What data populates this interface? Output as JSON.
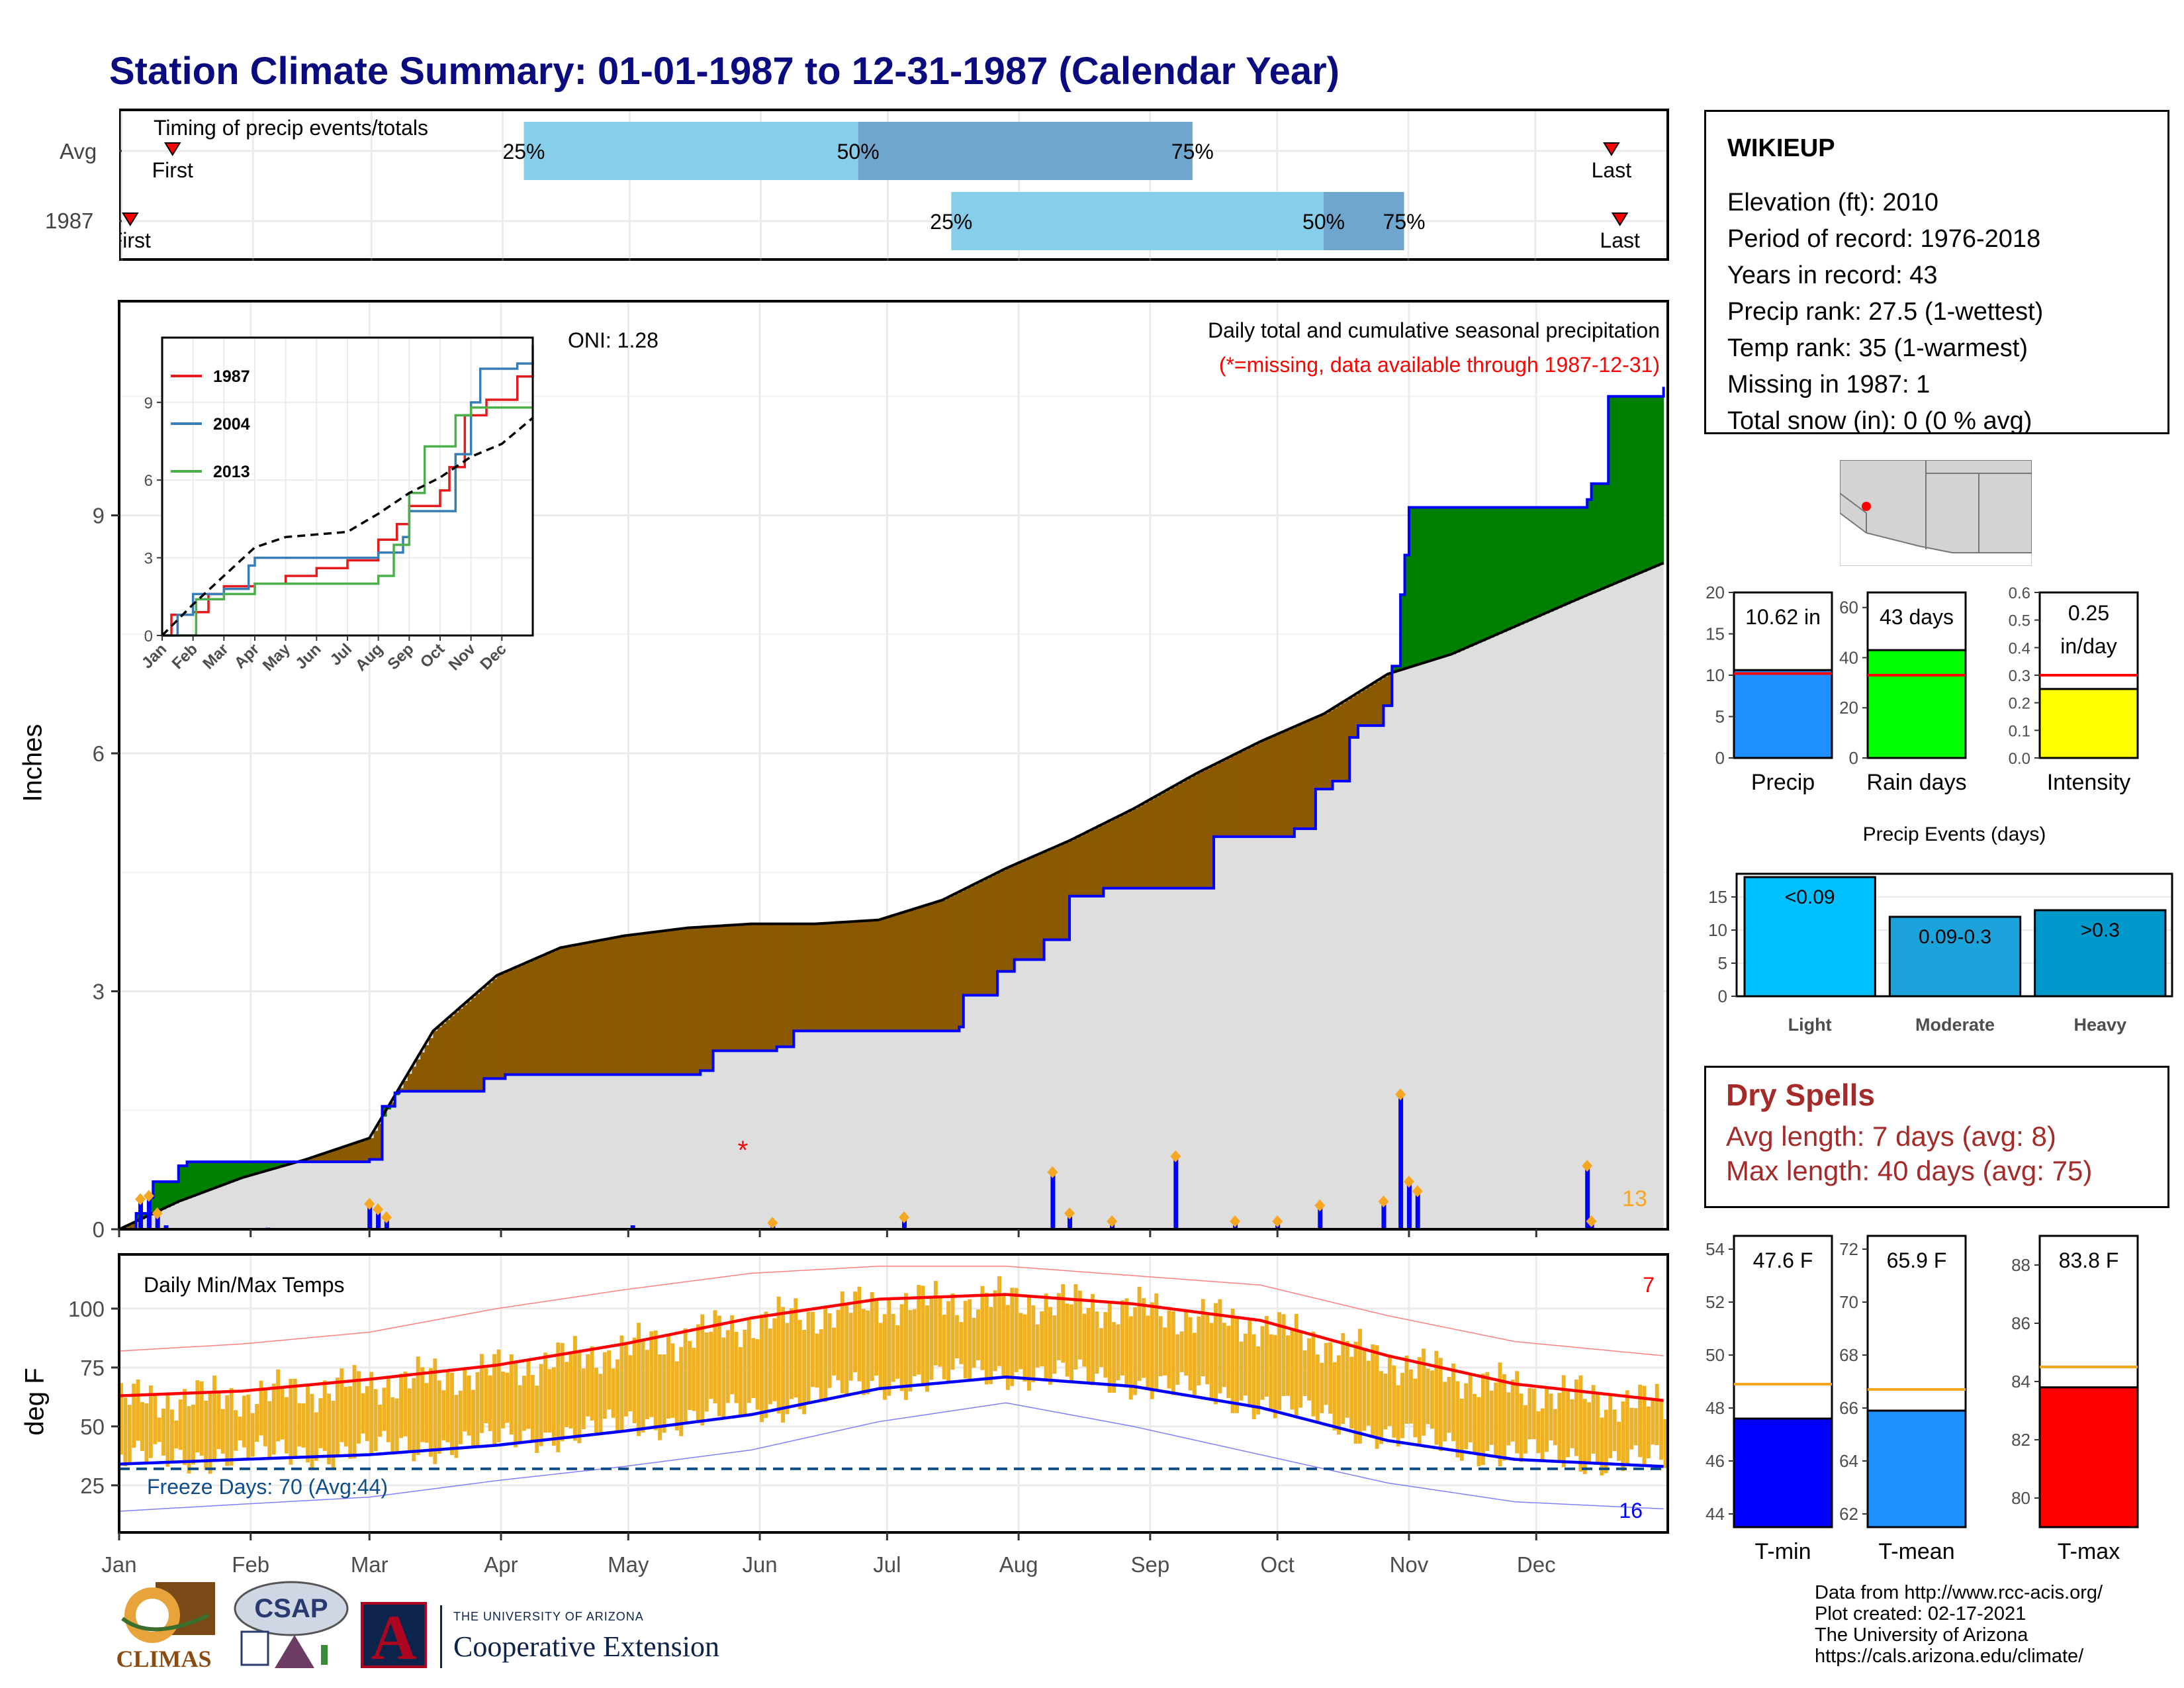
{
  "title": "Station Climate Summary: 01-01-1987 to 12-31-1987 (Calendar Year)",
  "colors": {
    "title": "#0b0b80",
    "precip_fill": "#1e90ff",
    "rain_fill": "#00ff00",
    "intensity_fill": "#ffff00",
    "tmin": "#0000ff",
    "tmean": "#1e90ff",
    "tmax": "#ff0000",
    "surplus": "#008000",
    "deficit": "#8b5a00",
    "dry": "#a52a2a",
    "temp_bar": "#eeb123"
  },
  "timing": {
    "label": "Timing of precip events/totals",
    "rows": [
      {
        "name": "Avg",
        "first": "First",
        "last": "Last",
        "p25_doy": 96,
        "p50_doy": 175,
        "p75_doy": 254,
        "first_doy": 13,
        "last_doy": 353
      },
      {
        "name": "1987",
        "first": "First",
        "last": "Last",
        "p25_doy": 197,
        "p50_doy": 285,
        "p75_doy": 304,
        "first_doy": 3,
        "last_doy": 355
      }
    ],
    "pct_labels": [
      "25%",
      "50%",
      "75%"
    ]
  },
  "station": {
    "name": "WIKIEUP",
    "lines": [
      "Elevation (ft): 2010",
      "Period of record: 1976-2018",
      "Years in record: 43",
      "Precip rank: 27.5 (1-wettest)",
      "Temp rank: 35 (1-warmest)",
      "Missing in 1987: 1",
      "Total snow (in): 0 (0 % avg)"
    ]
  },
  "precip_panel": {
    "ylabel": "Inches",
    "oni": "ONI: 1.28",
    "subtitle": "Daily total and cumulative seasonal precipitation",
    "missing_note": "(*=missing, data available through 1987-12-31)",
    "yticks": [
      "0",
      "3",
      "6",
      "9"
    ],
    "corner_count": "13"
  },
  "inset": {
    "legend": [
      "1987",
      "2004",
      "2013"
    ],
    "yticks": [
      "0",
      "3",
      "6",
      "9"
    ],
    "months": [
      "Jan",
      "Feb",
      "Mar",
      "Apr",
      "May",
      "Jun",
      "Jul",
      "Aug",
      "Sep",
      "Oct",
      "Nov",
      "Dec"
    ]
  },
  "temp_panel": {
    "title": "Daily Min/Max Temps",
    "ylabel": "deg F",
    "yticks": [
      "25",
      "50",
      "75",
      "100"
    ],
    "freeze": "Freeze Days: 70 (Avg:44)",
    "hot_count": "7",
    "cold_count": "16"
  },
  "months": [
    "Jan",
    "Feb",
    "Mar",
    "Apr",
    "May",
    "Jun",
    "Jul",
    "Aug",
    "Sep",
    "Oct",
    "Nov",
    "Dec"
  ],
  "precip_bars": {
    "labels": [
      "Precip",
      "Rain days",
      "Intensity"
    ],
    "values": [
      "10.62 in",
      "43 days",
      "0.25"
    ],
    "intensity_unit": "in/day",
    "p_ticks": [
      "0",
      "5",
      "10",
      "15",
      "20"
    ],
    "r_ticks": [
      "0",
      "20",
      "40",
      "60"
    ],
    "i_ticks": [
      "0.0",
      "0.1",
      "0.2",
      "0.3",
      "0.4",
      "0.5",
      "0.6"
    ]
  },
  "events": {
    "title": "Precip Events (days)",
    "categories": [
      "Light",
      "Moderate",
      "Heavy"
    ],
    "labels": [
      "<0.09",
      "0.09-0.3",
      ">0.3"
    ],
    "yticks": [
      "0",
      "5",
      "10",
      "15"
    ]
  },
  "dry": {
    "title": "Dry Spells",
    "avg": "Avg length: 7 days (avg: 8)",
    "max": "Max length: 40 days (avg: 75)"
  },
  "temp_bars": {
    "labels": [
      "T-min",
      "T-mean",
      "T-max"
    ],
    "values": [
      "47.6 F",
      "65.9 F",
      "83.8 F"
    ],
    "min_ticks": [
      "44",
      "46",
      "48",
      "50",
      "52",
      "54"
    ],
    "mean_ticks": [
      "62",
      "64",
      "66",
      "68",
      "70",
      "72"
    ],
    "max_ticks": [
      "80",
      "82",
      "84",
      "86",
      "88"
    ]
  },
  "footer": [
    "Data from http://www.rcc-acis.org/",
    "Plot created: 02-17-2021",
    "The University of Arizona",
    "https://cals.arizona.edu/climate/"
  ],
  "logos": {
    "climas": "CLIMAS",
    "csap": "CSAP",
    "ua_small": "THE UNIVERSITY OF ARIZONA",
    "coop": "Cooperative Extension",
    "ua_letter": "A"
  },
  "chart_data": [
    {
      "type": "line",
      "title": "Daily total and cumulative seasonal precipitation",
      "ylabel": "Inches",
      "ylim": [
        0,
        11.7
      ],
      "series": [
        {
          "name": "1987",
          "x_doy": [
            1,
            5,
            8,
            9,
            15,
            17,
            30,
            45,
            60,
            61,
            63,
            66,
            67,
            87,
            92,
            138,
            141,
            156,
            160,
            199,
            200,
            208,
            212,
            219,
            225,
            233,
            259,
            278,
            283,
            287,
            291,
            293,
            299,
            301,
            303,
            304,
            305,
            347,
            348,
            352,
            365
          ],
          "y": [
            0.0,
            0.2,
            0.4,
            0.6,
            0.8,
            0.85,
            0.85,
            0.85,
            0.88,
            0.88,
            1.55,
            1.72,
            1.74,
            1.9,
            1.95,
            2.0,
            2.25,
            2.3,
            2.5,
            2.55,
            2.95,
            3.25,
            3.4,
            3.65,
            4.2,
            4.3,
            4.95,
            5.05,
            5.55,
            5.65,
            6.2,
            6.35,
            6.6,
            7.1,
            8.0,
            8.5,
            9.1,
            9.2,
            9.4,
            10.5,
            10.62
          ]
        },
        {
          "name": "average",
          "x_doy": [
            1,
            15,
            30,
            45,
            60,
            75,
            90,
            105,
            120,
            135,
            150,
            165,
            180,
            195,
            210,
            225,
            240,
            255,
            270,
            285,
            300,
            315,
            330,
            345,
            365
          ],
          "y": [
            0.0,
            0.35,
            0.65,
            0.88,
            1.15,
            2.5,
            3.2,
            3.55,
            3.7,
            3.8,
            3.85,
            3.85,
            3.9,
            4.15,
            4.55,
            4.9,
            5.3,
            5.75,
            6.15,
            6.5,
            7.0,
            7.25,
            7.6,
            7.95,
            8.4
          ]
        }
      ],
      "daily_doy": [
        6,
        8,
        10,
        12,
        36,
        60,
        62,
        64,
        122,
        155,
        186,
        221,
        225,
        235,
        250,
        264,
        274,
        284,
        299,
        303,
        305,
        307,
        347,
        348
      ],
      "daily_in": [
        0.38,
        0.42,
        0.2,
        0.05,
        0.02,
        0.32,
        0.25,
        0.15,
        0.05,
        0.08,
        0.15,
        0.72,
        0.2,
        0.1,
        0.92,
        0.1,
        0.1,
        0.3,
        0.35,
        1.7,
        0.6,
        0.48,
        0.8,
        0.1
      ],
      "missing_doy": [
        148
      ]
    },
    {
      "type": "line",
      "title": "Inset cumulative precipitation comparison",
      "ylim": [
        0,
        11.5
      ],
      "series": [
        {
          "name": "1987",
          "x_month": [
            0,
            0.3,
            1.0,
            1.5,
            2.0,
            3.0,
            4.0,
            5.0,
            6.0,
            7.0,
            7.6,
            8.0,
            9.0,
            9.3,
            9.8,
            10.5,
            11.0,
            11.5,
            12.0
          ],
          "y": [
            0,
            0.8,
            0.9,
            1.6,
            1.9,
            2.0,
            2.3,
            2.6,
            2.9,
            3.7,
            4.3,
            5.0,
            5.6,
            6.5,
            8.5,
            9.1,
            9.1,
            10.0,
            10.6
          ]
        },
        {
          "name": "2004",
          "x_month": [
            0,
            0.5,
            1.0,
            2.0,
            2.8,
            3.0,
            4.0,
            5.0,
            6.0,
            7.0,
            7.8,
            8.0,
            9.0,
            9.5,
            10.0,
            10.3,
            11.0,
            11.5,
            12.0
          ],
          "y": [
            0,
            0.8,
            1.6,
            1.8,
            2.7,
            3.0,
            3.0,
            3.0,
            3.0,
            3.2,
            3.8,
            4.8,
            4.8,
            7.0,
            9.0,
            10.3,
            10.3,
            10.5,
            11.2
          ]
        },
        {
          "name": "2013",
          "x_month": [
            0,
            1.0,
            1.1,
            2.0,
            3.0,
            4.0,
            5.0,
            6.0,
            7.0,
            7.5,
            8.0,
            8.5,
            9.0,
            9.5,
            10.0,
            11.0,
            12.0
          ],
          "y": [
            0,
            0,
            1.4,
            1.6,
            2.0,
            2.0,
            2.0,
            2.0,
            2.3,
            3.5,
            5.5,
            7.3,
            7.3,
            8.5,
            8.8,
            8.8,
            8.8
          ]
        },
        {
          "name": "average",
          "x_month": [
            0,
            1,
            2,
            3,
            4,
            5,
            6,
            7,
            8,
            9,
            10,
            11,
            12
          ],
          "y": [
            0,
            1.2,
            2.3,
            3.4,
            3.8,
            3.9,
            4.0,
            4.7,
            5.5,
            6.1,
            6.9,
            7.4,
            8.4
          ]
        }
      ]
    },
    {
      "type": "line",
      "title": "Daily Min/Max Temps",
      "ylabel": "deg F",
      "ylim": [
        5,
        123
      ],
      "freeze_line": 32,
      "series": [
        {
          "name": "avg max",
          "x_doy": [
            1,
            30,
            60,
            90,
            120,
            150,
            180,
            210,
            240,
            270,
            300,
            330,
            365
          ],
          "y": [
            63,
            65,
            70,
            76,
            85,
            96,
            104,
            106,
            102,
            95,
            80,
            68,
            61
          ]
        },
        {
          "name": "avg min",
          "x_doy": [
            1,
            30,
            60,
            90,
            120,
            150,
            180,
            210,
            240,
            270,
            300,
            330,
            365
          ],
          "y": [
            34,
            36,
            38,
            42,
            48,
            55,
            66,
            71,
            67,
            58,
            44,
            36,
            33
          ]
        },
        {
          "name": "record max",
          "x_doy": [
            1,
            30,
            60,
            90,
            120,
            150,
            180,
            210,
            240,
            270,
            300,
            330,
            365
          ],
          "y": [
            82,
            85,
            90,
            100,
            108,
            115,
            118,
            118,
            114,
            110,
            97,
            86,
            80
          ]
        },
        {
          "name": "record min",
          "x_doy": [
            1,
            30,
            60,
            90,
            120,
            150,
            180,
            210,
            240,
            270,
            300,
            330,
            365
          ],
          "y": [
            14,
            17,
            20,
            27,
            33,
            40,
            52,
            60,
            50,
            38,
            26,
            18,
            15
          ]
        }
      ]
    },
    {
      "type": "bar",
      "title": "Precip Events (days)",
      "categories": [
        "Light",
        "Moderate",
        "Heavy"
      ],
      "values": [
        18,
        12,
        13
      ],
      "ylim": [
        0,
        18.5
      ]
    },
    {
      "type": "bar",
      "categories": [
        "Precip",
        "Rain days",
        "Intensity"
      ],
      "values": [
        10.62,
        43,
        0.25
      ],
      "averages": [
        10.2,
        33,
        0.3
      ],
      "ylims": [
        [
          0,
          20
        ],
        [
          0,
          60
        ],
        [
          0,
          0.6
        ]
      ]
    },
    {
      "type": "bar",
      "categories": [
        "T-min",
        "T-mean",
        "T-max"
      ],
      "values": [
        47.6,
        65.9,
        83.8
      ],
      "averages": [
        48.9,
        66.7,
        84.5
      ],
      "ylims": [
        [
          43.5,
          54.5
        ],
        [
          61.5,
          72.5
        ],
        [
          79,
          89
        ]
      ]
    }
  ]
}
